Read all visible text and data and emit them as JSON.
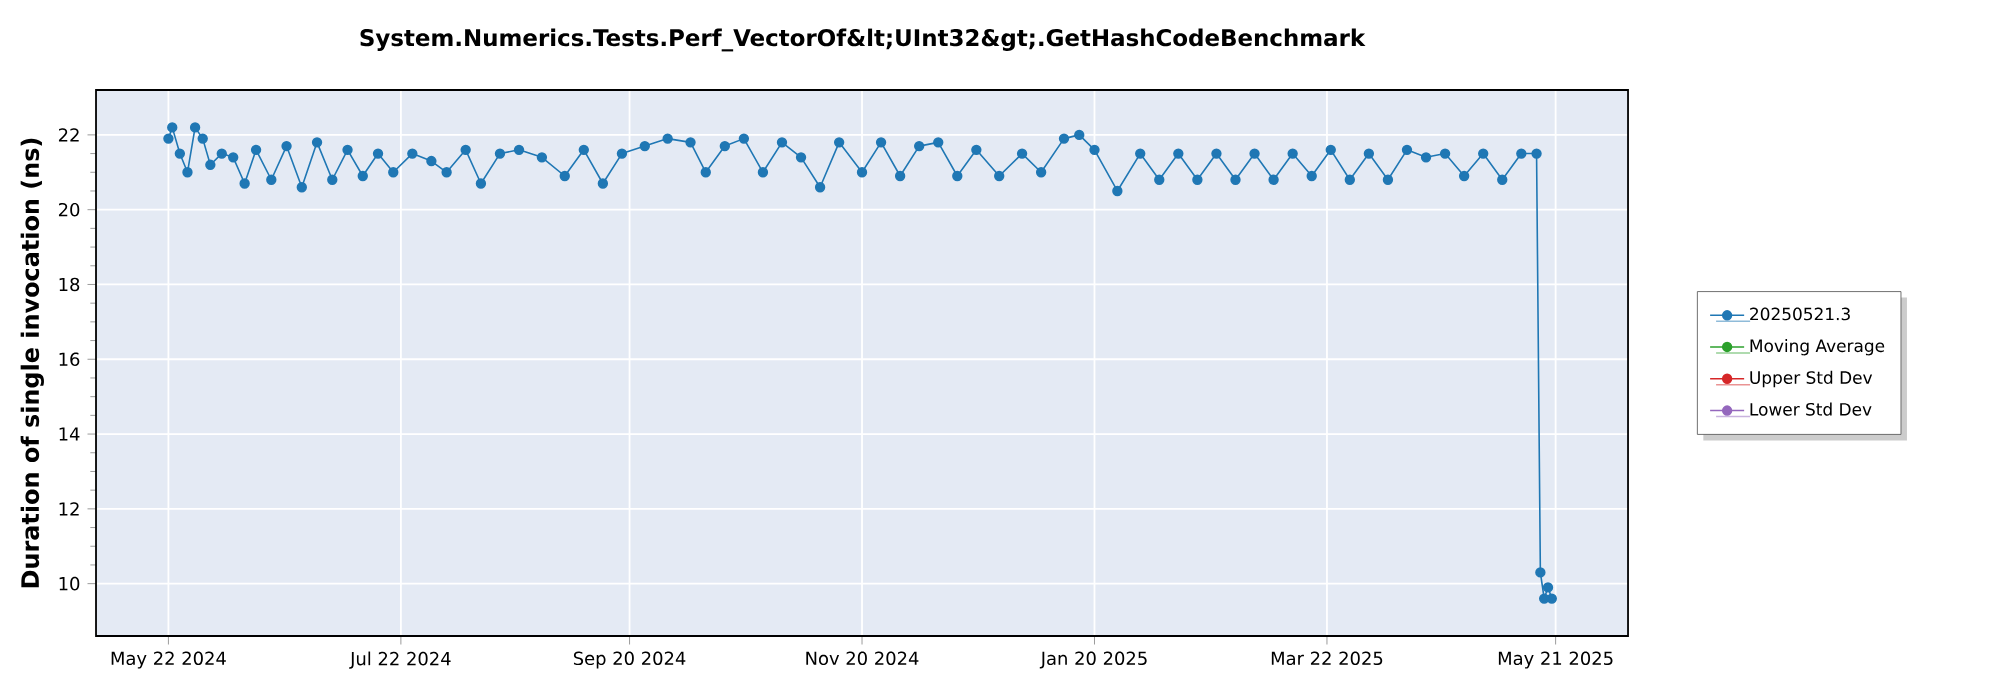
{
  "chart_data": {
    "type": "line",
    "title": "System.Numerics.Tests.Perf_VectorOf&lt;UInt32&gt;.GetHashCodeBenchmark",
    "ylabel": "Duration of single invocation (ns)",
    "xlim": [
      "2024-05-03",
      "2025-06-09"
    ],
    "ylim": [
      8.6,
      23.2
    ],
    "yticks": [
      10,
      12,
      14,
      16,
      18,
      20,
      22
    ],
    "xticks": [
      {
        "value": "2024-05-22",
        "label": "May 22 2024"
      },
      {
        "value": "2024-07-22",
        "label": "Jul 22 2024"
      },
      {
        "value": "2024-09-20",
        "label": "Sep 20 2024"
      },
      {
        "value": "2024-11-20",
        "label": "Nov 20 2024"
      },
      {
        "value": "2025-01-20",
        "label": "Jan 20 2025"
      },
      {
        "value": "2025-03-22",
        "label": "Mar 22 2025"
      },
      {
        "value": "2025-05-21",
        "label": "May 21 2025"
      }
    ],
    "grid": true,
    "legend": "right",
    "marker": "circle",
    "line_style": "solid",
    "series": [
      {
        "name": "20250521.3",
        "color": "#1f77b4",
        "x": [
          "2024-05-22",
          "2024-05-23",
          "2024-05-25",
          "2024-05-27",
          "2024-05-29",
          "2024-05-31",
          "2024-06-02",
          "2024-06-05",
          "2024-06-08",
          "2024-06-11",
          "2024-06-14",
          "2024-06-18",
          "2024-06-22",
          "2024-06-26",
          "2024-06-30",
          "2024-07-04",
          "2024-07-08",
          "2024-07-12",
          "2024-07-16",
          "2024-07-20",
          "2024-07-25",
          "2024-07-30",
          "2024-08-03",
          "2024-08-08",
          "2024-08-12",
          "2024-08-17",
          "2024-08-22",
          "2024-08-28",
          "2024-09-03",
          "2024-09-08",
          "2024-09-13",
          "2024-09-18",
          "2024-09-24",
          "2024-09-30",
          "2024-10-06",
          "2024-10-10",
          "2024-10-15",
          "2024-10-20",
          "2024-10-25",
          "2024-10-30",
          "2024-11-04",
          "2024-11-09",
          "2024-11-14",
          "2024-11-20",
          "2024-11-25",
          "2024-11-30",
          "2024-12-05",
          "2024-12-10",
          "2024-12-15",
          "2024-12-20",
          "2024-12-26",
          "2025-01-01",
          "2025-01-06",
          "2025-01-12",
          "2025-01-16",
          "2025-01-20",
          "2025-01-26",
          "2025-02-01",
          "2025-02-06",
          "2025-02-11",
          "2025-02-16",
          "2025-02-21",
          "2025-02-26",
          "2025-03-03",
          "2025-03-08",
          "2025-03-13",
          "2025-03-18",
          "2025-03-23",
          "2025-03-28",
          "2025-04-02",
          "2025-04-07",
          "2025-04-12",
          "2025-04-17",
          "2025-04-22",
          "2025-04-27",
          "2025-05-02",
          "2025-05-07",
          "2025-05-12",
          "2025-05-16",
          "2025-05-17",
          "2025-05-18",
          "2025-05-19",
          "2025-05-20"
        ],
        "values": [
          21.9,
          22.2,
          21.5,
          21.0,
          22.2,
          21.9,
          21.2,
          21.5,
          21.4,
          20.7,
          21.6,
          20.8,
          21.7,
          20.6,
          21.8,
          20.8,
          21.6,
          20.9,
          21.5,
          21.0,
          21.5,
          21.3,
          21.0,
          21.6,
          20.7,
          21.5,
          21.6,
          21.4,
          20.9,
          21.6,
          20.7,
          21.5,
          21.7,
          21.9,
          21.8,
          21.0,
          21.7,
          21.9,
          21.0,
          21.8,
          21.4,
          20.6,
          21.8,
          21.0,
          21.8,
          20.9,
          21.7,
          21.8,
          20.9,
          21.6,
          20.9,
          21.5,
          21.0,
          21.9,
          22.0,
          21.6,
          20.5,
          21.5,
          20.8,
          21.5,
          20.8,
          21.5,
          20.8,
          21.5,
          20.8,
          21.5,
          20.9,
          21.6,
          20.8,
          21.5,
          20.8,
          21.6,
          21.4,
          21.5,
          20.9,
          21.5,
          20.8,
          21.5,
          21.5,
          10.3,
          9.6,
          9.9,
          9.6
        ]
      },
      {
        "name": "Moving Average",
        "color": "#2ca02c"
      },
      {
        "name": "Upper Std Dev",
        "color": "#d62728"
      },
      {
        "name": "Lower Std Dev",
        "color": "#9467bd"
      }
    ]
  }
}
